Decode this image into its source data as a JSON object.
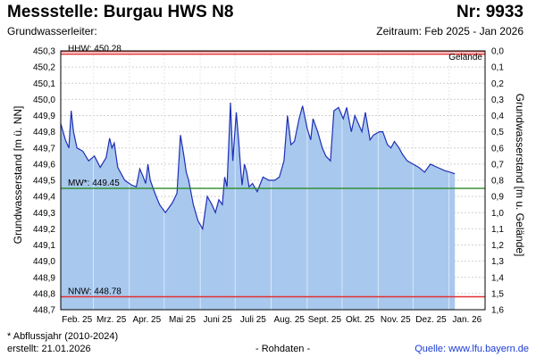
{
  "header": {
    "title": "Messstelle: Burgau HWS N8",
    "number": "Nr: 9933",
    "aquifer_label": "Grundwasserleiter:",
    "period": "Zeitraum: Feb 2025 - Jan 2026"
  },
  "footer": {
    "note": "* Abflussjahr (2010-2024)",
    "created": "erstellt:  21.01.2026",
    "raw": "- Rohdaten -",
    "source": "Quelle: www.lfu.bayern.de"
  },
  "colors": {
    "area_fill": "#a8c8ee",
    "line": "#1f2fb4",
    "hhw_line": "#e03030",
    "nnw_line": "#e03030",
    "mw_line": "#2a8a2a",
    "grid": "#d0d0d0"
  },
  "chart_data": {
    "type": "area",
    "ylabel": "Grundwasserstand [m ü. NN]",
    "ylabel_right": "Grundwasserstand [m u. Gelände]",
    "ylim": [
      448.7,
      450.3
    ],
    "ylim_right": [
      0.0,
      1.6
    ],
    "y_ticks": [
      "448,7",
      "448,8",
      "448,9",
      "449,0",
      "449,1",
      "449,2",
      "449,3",
      "449,4",
      "449,5",
      "449,6",
      "449,7",
      "449,8",
      "449,9",
      "450,0",
      "450,1",
      "450,2",
      "450,3"
    ],
    "y_ticks_right": [
      "1,6",
      "1,5",
      "1,4",
      "1,3",
      "1,2",
      "1,1",
      "1,0",
      "0,9",
      "0,8",
      "0,7",
      "0,6",
      "0,5",
      "0,4",
      "0,3",
      "0,2",
      "0,1",
      "0,0"
    ],
    "x_ticks": [
      "Feb. 25",
      "Mrz. 25",
      "Apr. 25",
      "Mai 25",
      "Juni 25",
      "Juli 25",
      "Aug. 25",
      "Sept. 25",
      "Okt. 25",
      "Nov. 25",
      "Dez. 25",
      "Jan. 26"
    ],
    "grid": true,
    "reference_lines": [
      {
        "label": "HHW: 450.28",
        "value": 450.28
      },
      {
        "label": "MW*: 449.45",
        "value": 449.45
      },
      {
        "label": "NNW: 448.78",
        "value": 448.78
      }
    ],
    "ground_label": "Gelände",
    "ground_value": 450.3,
    "series": [
      {
        "x": [
          "2025-02-01",
          "2025-02-05",
          "2025-02-08",
          "2025-02-10",
          "2025-02-12",
          "2025-02-15",
          "2025-02-20",
          "2025-02-25",
          "2025-03-02",
          "2025-03-07",
          "2025-03-12",
          "2025-03-15",
          "2025-03-17",
          "2025-03-19",
          "2025-03-22",
          "2025-03-28",
          "2025-04-03",
          "2025-04-07",
          "2025-04-10",
          "2025-04-13",
          "2025-04-15",
          "2025-04-17",
          "2025-04-19",
          "2025-04-23",
          "2025-04-27",
          "2025-05-02",
          "2025-05-08",
          "2025-05-12",
          "2025-05-15",
          "2025-05-18",
          "2025-05-20",
          "2025-05-22",
          "2025-05-26",
          "2025-05-30",
          "2025-06-03",
          "2025-06-07",
          "2025-06-11",
          "2025-06-14",
          "2025-06-17",
          "2025-06-20",
          "2025-06-22",
          "2025-06-24",
          "2025-06-27",
          "2025-06-29",
          "2025-07-02",
          "2025-07-04",
          "2025-07-06",
          "2025-07-07",
          "2025-07-09",
          "2025-07-11",
          "2025-07-13",
          "2025-07-16",
          "2025-07-20",
          "2025-07-25",
          "2025-07-30",
          "2025-08-04",
          "2025-08-08",
          "2025-08-12",
          "2025-08-15",
          "2025-08-18",
          "2025-08-21",
          "2025-08-25",
          "2025-08-28",
          "2025-09-01",
          "2025-09-04",
          "2025-09-06",
          "2025-09-10",
          "2025-09-14",
          "2025-09-17",
          "2025-09-21",
          "2025-09-24",
          "2025-09-28",
          "2025-10-02",
          "2025-10-05",
          "2025-10-09",
          "2025-10-12",
          "2025-10-15",
          "2025-10-18",
          "2025-10-21",
          "2025-10-25",
          "2025-10-28",
          "2025-11-02",
          "2025-11-05",
          "2025-11-09",
          "2025-11-12",
          "2025-11-15",
          "2025-11-19",
          "2025-11-22",
          "2025-11-26",
          "2025-12-01",
          "2025-12-06",
          "2025-12-11",
          "2025-12-16",
          "2025-12-22",
          "2025-12-28",
          "2026-01-02",
          "2026-01-06"
        ],
        "values": [
          449.85,
          449.75,
          449.7,
          449.93,
          449.8,
          449.7,
          449.68,
          449.62,
          449.65,
          449.58,
          449.64,
          449.76,
          449.7,
          449.73,
          449.58,
          449.5,
          449.47,
          449.46,
          449.57,
          449.52,
          449.48,
          449.6,
          449.5,
          449.42,
          449.35,
          449.3,
          449.36,
          449.42,
          449.78,
          449.65,
          449.55,
          449.5,
          449.35,
          449.25,
          449.2,
          449.4,
          449.35,
          449.3,
          449.38,
          449.35,
          449.52,
          449.46,
          449.98,
          449.62,
          449.92,
          449.75,
          449.55,
          449.47,
          449.6,
          449.55,
          449.46,
          449.48,
          449.43,
          449.52,
          449.5,
          449.5,
          449.52,
          449.62,
          449.9,
          449.72,
          449.74,
          449.88,
          449.96,
          449.82,
          449.75,
          449.88,
          449.8,
          449.7,
          449.65,
          449.62,
          449.93,
          449.95,
          449.88,
          449.95,
          449.8,
          449.9,
          449.85,
          449.8,
          449.92,
          449.75,
          449.78,
          449.8,
          449.8,
          449.72,
          449.7,
          449.74,
          449.7,
          449.66,
          449.62,
          449.6,
          449.58,
          449.55,
          449.6,
          449.58,
          449.56,
          449.55,
          449.54
        ]
      }
    ]
  }
}
